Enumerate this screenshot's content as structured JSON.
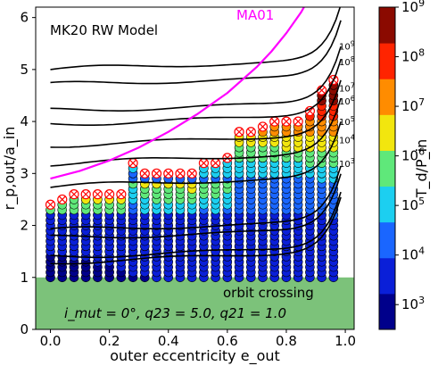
{
  "chart_data": {
    "type": "scatter",
    "title": "MK20 RW Model",
    "xlabel": "outer eccentricity e_out",
    "ylabel": "r_p,out/a_in",
    "xlim": [
      -0.05,
      1.03
    ],
    "ylim": [
      0,
      6.2
    ],
    "x_ticks": [
      "0.0",
      "0.2",
      "0.4",
      "0.6",
      "0.8",
      "1.0"
    ],
    "y_ticks": [
      "0",
      "1",
      "2",
      "3",
      "4",
      "5",
      "6"
    ],
    "annotations": {
      "orbit_crossing": "orbit crossing",
      "params": "i_mut = 0°, q23 = 5.0, q21 = 1.0",
      "ma01_label": "MA01"
    },
    "orbit_crossing_band": [
      0,
      1
    ],
    "ma01_curve": {
      "color": "#ff00ff",
      "x": [
        0.0,
        0.1,
        0.2,
        0.3,
        0.4,
        0.5,
        0.6,
        0.7,
        0.75,
        0.8,
        0.85,
        0.9
      ],
      "y": [
        2.9,
        3.05,
        3.25,
        3.5,
        3.8,
        4.15,
        4.55,
        5.05,
        5.35,
        5.7,
        6.1,
        6.6
      ]
    },
    "contours": [
      {
        "label": "10^9",
        "y0": 5.0
      },
      {
        "label": "10^8",
        "y0": 4.7
      },
      {
        "label": "10^7",
        "y0": 4.2
      },
      {
        "label": "10^6",
        "y0": 3.95
      },
      {
        "label": "10^5",
        "y0": 3.55
      },
      {
        "label": "10^4",
        "y0": 3.2
      },
      {
        "label": "10^3",
        "y0": 2.75
      },
      {
        "label": "",
        "y0": 1.9
      },
      {
        "label": "",
        "y0": 1.75
      },
      {
        "label": "",
        "y0": 1.4
      },
      {
        "label": "",
        "y0": 1.3
      }
    ],
    "colorbar": {
      "label": "T_d/P_in",
      "tick_labels": [
        "10^3",
        "10^4",
        "10^5",
        "10^6",
        "10^7",
        "10^8",
        "10^9"
      ],
      "range_log": [
        2.5,
        9
      ],
      "bands": [
        "#00008b",
        "#0a1fd8",
        "#1a66ff",
        "#1ccff0",
        "#5fe87a",
        "#f2e60e",
        "#ff8c00",
        "#ff2400",
        "#8b0a00"
      ]
    },
    "points": {
      "e_values": [
        0.0,
        0.04,
        0.08,
        0.12,
        0.16,
        0.2,
        0.24,
        0.28,
        0.32,
        0.36,
        0.4,
        0.44,
        0.48,
        0.52,
        0.56,
        0.6,
        0.64,
        0.68,
        0.72,
        0.76,
        0.8,
        0.84,
        0.88,
        0.92,
        0.96
      ],
      "r_values": [
        1.0,
        1.1,
        1.2,
        1.3,
        1.4,
        1.5,
        1.6,
        1.7,
        1.8,
        1.9,
        2.0,
        2.1,
        2.2,
        2.3,
        2.4,
        2.5,
        2.6,
        2.7,
        2.8,
        2.9,
        3.0,
        3.1,
        3.2,
        3.3,
        3.4,
        3.5,
        3.6,
        3.7,
        3.8,
        3.9,
        4.0,
        4.1,
        4.2,
        4.3,
        4.4,
        4.5,
        4.6,
        4.7,
        4.8
      ],
      "max_r_per_e": [
        2.4,
        2.5,
        2.6,
        2.6,
        2.6,
        2.6,
        2.6,
        3.2,
        3.0,
        3.0,
        3.0,
        3.0,
        3.0,
        3.2,
        3.2,
        3.3,
        3.8,
        3.8,
        3.9,
        4.0,
        4.0,
        4.0,
        4.2,
        4.6,
        4.8
      ],
      "crossed_color": "#ff0000"
    }
  }
}
